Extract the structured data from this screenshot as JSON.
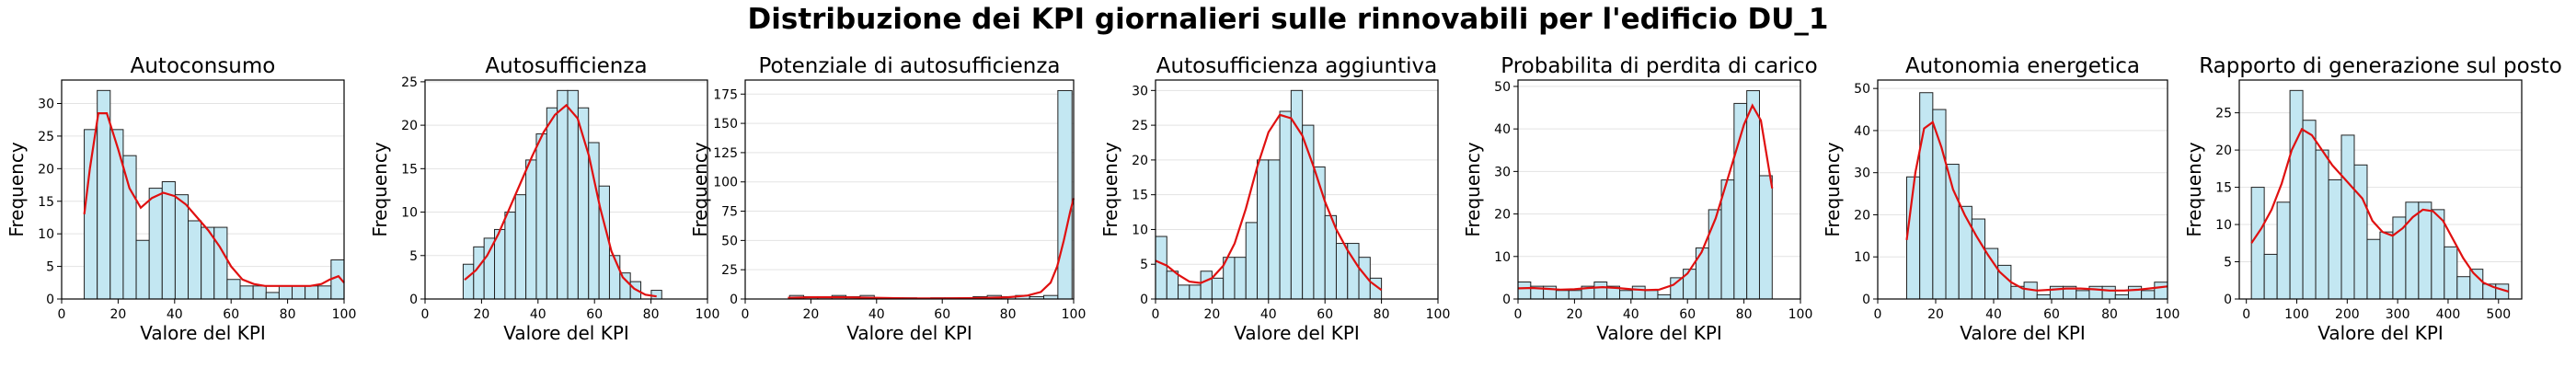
{
  "figure": {
    "title": "Distribuzione dei KPI giornalieri sulle rinnovabili per l'edificio DU_1"
  },
  "colors": {
    "bar_fill": "#c3e7f2",
    "bar_edge": "#222222",
    "kde": "#e01010",
    "grid": "#e3e3e3"
  },
  "chart_data": [
    {
      "type": "bar",
      "title": "Autoconsumo",
      "xlabel": "Valore del KPI",
      "ylabel": "Frequency",
      "xlim": [
        0,
        100
      ],
      "ylim": [
        0,
        33.6
      ],
      "xticks": [
        0,
        20,
        40,
        60,
        80,
        100
      ],
      "yticks": [
        0,
        5,
        10,
        15,
        20,
        25,
        30
      ],
      "grid": "y",
      "bins": {
        "edges": [
          8.0,
          12.6,
          17.2,
          21.8,
          26.4,
          31.0,
          35.6,
          40.2,
          44.8,
          49.4,
          54.0,
          58.6,
          63.2,
          67.8,
          72.4,
          77.0,
          81.6,
          86.2,
          90.8,
          95.4,
          100.0
        ],
        "counts": [
          26,
          32,
          26,
          22,
          9,
          17,
          18,
          16,
          12,
          11,
          11,
          3,
          2,
          2,
          1,
          2,
          2,
          2,
          2,
          6
        ]
      },
      "kde": {
        "x": [
          8,
          10,
          13,
          16,
          20,
          24,
          28,
          32,
          36,
          40,
          44,
          48,
          52,
          56,
          60,
          64,
          68,
          72,
          76,
          80,
          84,
          88,
          92,
          95,
          98,
          100
        ],
        "y": [
          13,
          20,
          28.5,
          28.5,
          23,
          17,
          14,
          15.5,
          16.3,
          15.8,
          14.5,
          12.5,
          10.5,
          8,
          5,
          3,
          2.3,
          2,
          2,
          2,
          2,
          2,
          2.3,
          3,
          3.5,
          2.5
        ]
      }
    },
    {
      "type": "bar",
      "title": "Autosufficienza",
      "xlabel": "Valore del KPI",
      "ylabel": "Frequency",
      "xlim": [
        0,
        100
      ],
      "ylim": [
        0,
        25.2
      ],
      "xticks": [
        0,
        20,
        40,
        60,
        80,
        100
      ],
      "yticks": [
        0,
        5,
        10,
        15,
        20,
        25
      ],
      "grid": "y",
      "bins": {
        "edges": [
          13.5,
          17.2,
          20.9,
          24.6,
          28.3,
          32.0,
          35.7,
          39.4,
          43.1,
          46.8,
          50.5,
          54.2,
          57.9,
          61.6,
          65.3,
          69.0,
          72.7,
          76.4,
          80.1,
          83.8
        ],
        "counts": [
          4,
          6,
          7,
          8,
          10,
          12,
          16,
          19,
          22,
          24,
          24,
          22,
          18,
          13,
          5,
          3,
          2,
          0,
          1
        ]
      },
      "kde": {
        "x": [
          14,
          18,
          22,
          26,
          30,
          34,
          38,
          42,
          46,
          50,
          54,
          58,
          62,
          66,
          70,
          74,
          78,
          82
        ],
        "y": [
          2.2,
          3.3,
          5,
          7.5,
          10.5,
          13.5,
          16.5,
          19.2,
          21.2,
          22.3,
          20.8,
          16.5,
          10.5,
          5.5,
          2.5,
          1.2,
          0.5,
          0.3
        ]
      }
    },
    {
      "type": "bar",
      "title": "Potenziale di autosufficienza",
      "xlabel": "Valore del KPI",
      "ylabel": "Frequency",
      "xlim": [
        0,
        100
      ],
      "ylim": [
        0,
        187
      ],
      "xticks": [
        0,
        20,
        40,
        60,
        80,
        100
      ],
      "yticks": [
        0,
        25,
        50,
        75,
        100,
        125,
        150,
        175
      ],
      "grid": "y",
      "bins": {
        "edges": [
          13.5,
          17.8,
          22.1,
          26.4,
          30.7,
          35.0,
          39.3,
          43.6,
          47.9,
          52.2,
          56.5,
          60.8,
          65.1,
          69.4,
          73.7,
          78.0,
          82.3,
          86.6,
          90.9,
          95.2,
          99.5
        ],
        "counts": [
          3,
          2,
          2,
          3,
          2,
          3,
          1,
          1,
          1,
          0,
          1,
          1,
          1,
          2,
          3,
          2,
          3,
          2,
          3,
          178
        ]
      },
      "kde": {
        "x": [
          13,
          20,
          30,
          40,
          50,
          60,
          70,
          80,
          86,
          90,
          93,
          95,
          97,
          99,
          100
        ],
        "y": [
          1,
          1.5,
          1.5,
          1,
          0.5,
          0.5,
          0.8,
          1.5,
          3,
          6,
          14,
          28,
          50,
          75,
          86
        ]
      }
    },
    {
      "type": "bar",
      "title": "Autosufficienza aggiuntiva",
      "xlabel": "Valore del KPI",
      "ylabel": "Frequency",
      "xlim": [
        0,
        100
      ],
      "ylim": [
        0,
        31.5
      ],
      "xticks": [
        0,
        20,
        40,
        60,
        80,
        100
      ],
      "yticks": [
        0,
        5,
        10,
        15,
        20,
        25,
        30
      ],
      "grid": "y",
      "bins": {
        "edges": [
          0,
          4,
          8,
          12,
          16,
          20,
          24,
          28,
          32,
          36,
          40,
          44,
          48,
          52,
          56,
          60,
          64,
          68,
          72,
          76,
          80
        ],
        "counts": [
          9,
          4,
          2,
          2,
          4,
          3,
          6,
          6,
          11,
          20,
          20,
          27,
          30,
          25,
          19,
          12,
          8,
          8,
          6,
          3
        ]
      },
      "kde": {
        "x": [
          0,
          4,
          8,
          12,
          16,
          20,
          24,
          28,
          32,
          36,
          40,
          44,
          48,
          52,
          56,
          60,
          64,
          68,
          72,
          76,
          80
        ],
        "y": [
          5.5,
          4.8,
          3.5,
          2.5,
          2.3,
          3,
          4.8,
          8,
          13,
          19,
          24,
          26.5,
          26,
          23.5,
          19,
          14,
          10,
          7,
          4.5,
          2.5,
          1.3
        ]
      }
    },
    {
      "type": "bar",
      "title": "Probabilita di perdita di carico",
      "xlabel": "Valore del KPI",
      "ylabel": "Frequency",
      "xlim": [
        0,
        100
      ],
      "ylim": [
        0,
        51.5
      ],
      "xticks": [
        0,
        20,
        40,
        60,
        80,
        100
      ],
      "yticks": [
        0,
        10,
        20,
        30,
        40,
        50
      ],
      "grid": "y",
      "bins": {
        "edges": [
          0,
          4.5,
          9.0,
          13.5,
          18.0,
          22.5,
          27.0,
          31.5,
          36.0,
          40.5,
          45.0,
          49.5,
          54.0,
          58.5,
          63.0,
          67.5,
          72.0,
          76.5,
          81.0,
          85.5,
          90.0
        ],
        "counts": [
          4,
          3,
          3,
          2,
          2,
          3,
          4,
          3,
          2,
          3,
          2,
          1,
          5,
          7,
          12,
          21,
          28,
          46,
          49,
          29
        ]
      },
      "kde": {
        "x": [
          0,
          5,
          10,
          15,
          20,
          25,
          30,
          35,
          40,
          45,
          50,
          55,
          60,
          65,
          70,
          75,
          80,
          83,
          86,
          89,
          90
        ],
        "y": [
          2.5,
          2.6,
          2.4,
          2.2,
          2.3,
          2.6,
          2.8,
          2.6,
          2.3,
          2.1,
          2.2,
          3.3,
          6,
          11,
          19,
          30,
          41,
          45.5,
          42,
          30,
          26
        ]
      }
    },
    {
      "type": "bar",
      "title": "Autonomia energetica",
      "xlabel": "Valore del KPI",
      "ylabel": "Frequency",
      "xlim": [
        0,
        100
      ],
      "ylim": [
        0,
        52
      ],
      "xticks": [
        0,
        20,
        40,
        60,
        80,
        100
      ],
      "yticks": [
        0,
        10,
        20,
        30,
        40,
        50
      ],
      "grid": "y",
      "bins": {
        "edges": [
          10.0,
          14.5,
          19.0,
          23.5,
          28.0,
          32.5,
          37.0,
          41.5,
          46.0,
          50.5,
          55.0,
          59.5,
          64.0,
          68.5,
          73.0,
          77.5,
          82.0,
          86.5,
          91.0,
          95.5,
          100.0
        ],
        "counts": [
          29,
          49,
          45,
          32,
          22,
          19,
          12,
          8,
          3,
          4,
          1,
          3,
          3,
          2,
          3,
          3,
          1,
          3,
          2,
          4
        ]
      },
      "kde": {
        "x": [
          10,
          13,
          16,
          19,
          22,
          26,
          30,
          34,
          38,
          42,
          46,
          50,
          55,
          60,
          65,
          70,
          75,
          80,
          85,
          90,
          95,
          100
        ],
        "y": [
          14,
          30,
          40.5,
          42,
          36,
          26,
          20,
          15,
          10.5,
          6.5,
          4,
          2.5,
          2,
          2.2,
          2.5,
          2.5,
          2.3,
          2,
          2,
          2.2,
          2.6,
          3
        ]
      }
    },
    {
      "type": "bar",
      "title": "Rapporto di generazione sul posto",
      "xlabel": "Valore del KPI",
      "ylabel": "Frequency",
      "xlim": [
        -14,
        546
      ],
      "ylim": [
        0,
        29.4
      ],
      "xticks": [
        0,
        100,
        200,
        300,
        400,
        500
      ],
      "yticks": [
        0,
        5,
        10,
        15,
        20,
        25
      ],
      "grid": "y",
      "bins": {
        "edges": [
          10,
          35.5,
          61,
          86.5,
          112,
          137.5,
          163,
          188.5,
          214,
          239.5,
          265,
          290.5,
          316,
          341.5,
          367,
          392.5,
          418,
          443.5,
          469,
          494.5,
          520
        ],
        "counts": [
          15,
          6,
          13,
          28,
          24,
          20,
          16,
          22,
          18,
          8,
          9,
          11,
          13,
          13,
          12,
          7,
          3,
          4,
          2,
          2
        ]
      },
      "kde": {
        "x": [
          10,
          30,
          50,
          70,
          90,
          110,
          130,
          150,
          170,
          190,
          210,
          230,
          250,
          270,
          290,
          310,
          330,
          350,
          370,
          390,
          410,
          430,
          450,
          470,
          490,
          510,
          520
        ],
        "y": [
          7.5,
          9.5,
          12,
          15.5,
          20,
          22.8,
          22,
          20,
          18,
          16.5,
          15,
          13.5,
          10.5,
          9,
          8.5,
          9.5,
          11,
          12,
          11.8,
          10.5,
          8,
          5.5,
          3.5,
          2.2,
          1.6,
          1.2,
          1
        ]
      }
    }
  ]
}
